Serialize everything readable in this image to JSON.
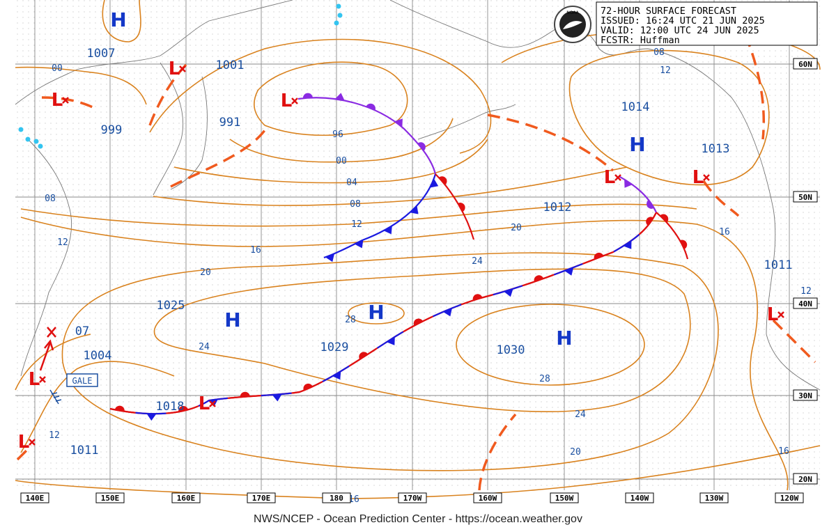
{
  "header": {
    "lines": [
      "72-HOUR SURFACE FORECAST",
      "ISSUED: 16:24 UTC 21 JUN 2025",
      "VALID:  12:00 UTC 24 JUN 2025",
      "FCSTR:  Huffman"
    ],
    "logo": "NOAA"
  },
  "footer": "NWS/NCEP - Ocean Prediction Center - https://ocean.weather.gov",
  "longitudes": [
    "140E",
    "150E",
    "160E",
    "170E",
    "180",
    "170W",
    "160W",
    "150W",
    "140W",
    "130W",
    "120W"
  ],
  "latitudes": [
    "60N",
    "50N",
    "40N",
    "30N",
    "20N"
  ],
  "highs": [
    "H",
    "H",
    "H",
    "H",
    "H"
  ],
  "lows": [
    "L",
    "L",
    "L",
    "L",
    "L",
    "L",
    "L",
    "L",
    "L"
  ],
  "pressures": [
    "1007",
    "1001",
    "999",
    "991",
    "1014",
    "1013",
    "1012",
    "1011",
    "1025",
    "1029",
    "1030",
    "1004",
    "1018",
    "1011",
    "07"
  ],
  "isobar_labels": [
    "00",
    "08",
    "12",
    "96",
    "00",
    "04",
    "08",
    "12",
    "16",
    "20",
    "24",
    "20",
    "16",
    "08",
    "12",
    "28",
    "24",
    "28",
    "24",
    "20",
    "16",
    "12",
    "12",
    "16"
  ],
  "warning": "GALE"
}
